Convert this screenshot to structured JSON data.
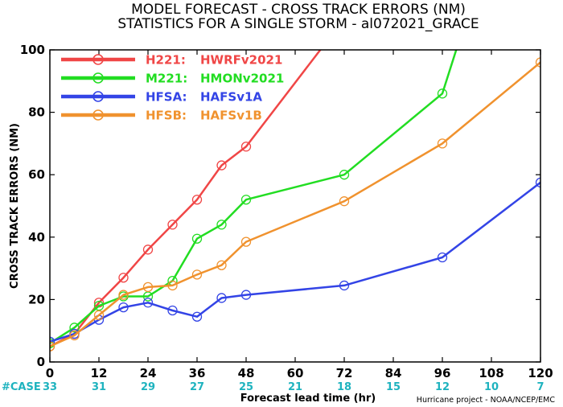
{
  "title_line1": "MODEL FORECAST - CROSS TRACK ERRORS (NM)",
  "title_line2": "STATISTICS FOR A SINGLE STORM - al072021_GRACE",
  "credit": "Hurricane project - NOAA/NCEP/EMC",
  "colors": {
    "case_label": "#1fb3bf",
    "axis": "#000000"
  },
  "chart_data": {
    "type": "line",
    "xlabel": "Forecast lead time (hr)",
    "ylabel": "CROSS TRACK ERRORS (NM)",
    "xlim": [
      0,
      120
    ],
    "ylim": [
      0,
      100
    ],
    "xticks": [
      0,
      12,
      24,
      36,
      48,
      60,
      72,
      84,
      96,
      108,
      120
    ],
    "yticks": [
      0,
      20,
      40,
      60,
      80,
      100
    ],
    "legend_position": "top-left",
    "case_label": "#CASE",
    "case_counts": [
      33,
      31,
      29,
      27,
      25,
      21,
      18,
      15,
      12,
      10,
      7
    ],
    "series": [
      {
        "id": "H221",
        "name": "H221: HWRFv2021",
        "code": "H221:",
        "desc": "HWRFv2021",
        "color": "#f04646",
        "x": [
          0,
          6,
          12,
          18,
          24,
          30,
          36,
          42,
          48,
          72
        ],
        "y": [
          5.0,
          9.0,
          19.0,
          27.0,
          36.0,
          44.0,
          52.0,
          63.0,
          69.0,
          110.0
        ]
      },
      {
        "id": "M221",
        "name": "M221: HMONv2021",
        "code": "M221:",
        "desc": "HMONv2021",
        "color": "#22dd22",
        "x": [
          0,
          6,
          12,
          18,
          24,
          30,
          36,
          42,
          48,
          72,
          96,
          120
        ],
        "y": [
          6.0,
          11.0,
          18.0,
          21.0,
          21.0,
          26.0,
          39.5,
          44.0,
          52.0,
          60.0,
          86.0,
          185.0
        ]
      },
      {
        "id": "HFSA",
        "name": "HFSA: HAFSv1A",
        "code": "HFSA:",
        "desc": "HAFSv1A",
        "color": "#3344e6",
        "x": [
          0,
          6,
          12,
          18,
          24,
          30,
          36,
          42,
          48,
          72,
          96,
          120
        ],
        "y": [
          6.5,
          9.0,
          13.5,
          17.5,
          19.0,
          16.5,
          14.5,
          20.5,
          21.5,
          24.5,
          33.5,
          57.5
        ]
      },
      {
        "id": "HFSB",
        "name": "HFSB: HAFSv1B",
        "code": "HFSB:",
        "desc": "HAFSv1B",
        "color": "#f0922e",
        "x": [
          0,
          6,
          12,
          18,
          24,
          30,
          36,
          42,
          48,
          72,
          96,
          120
        ],
        "y": [
          5.0,
          8.5,
          15.0,
          21.5,
          24.0,
          24.5,
          28.0,
          31.0,
          38.5,
          51.5,
          70.0,
          96.0
        ]
      }
    ]
  }
}
